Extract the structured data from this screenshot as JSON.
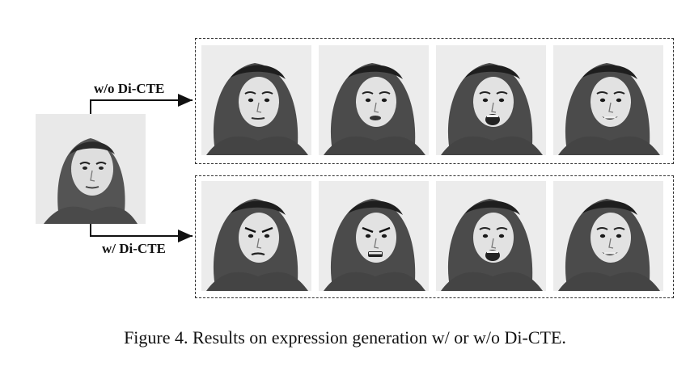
{
  "figure": {
    "caption": "Figure 4. Results on expression generation w/ or w/o Di-CTE.",
    "branch_top_label": "w/o Di-CTE",
    "branch_bottom_label": "w/ Di-CTE"
  },
  "source_image": {
    "expression": "neutral"
  },
  "rows": [
    {
      "name": "w/o Di-CTE",
      "expressions": [
        "neutral",
        "slight-open",
        "open-mouth",
        "smile"
      ]
    },
    {
      "name": "w/ Di-CTE",
      "expressions": [
        "angry",
        "angry-snarl",
        "open-mouth",
        "smile"
      ]
    }
  ]
}
